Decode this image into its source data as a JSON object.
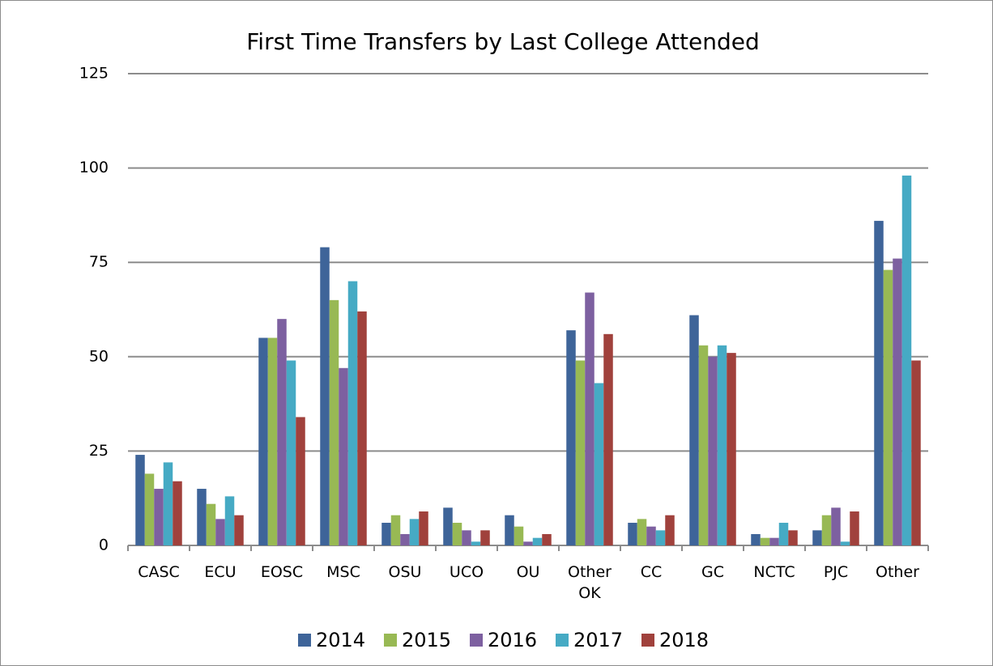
{
  "chart_data": {
    "type": "bar",
    "title": "First Time Transfers by Last College Attended",
    "categories": [
      "CASC",
      "ECU",
      "EOSC",
      "MSC",
      "OSU",
      "UCO",
      "OU",
      "Other OK",
      "CC",
      "GC",
      "NCTC",
      "PJC",
      "Other"
    ],
    "series": [
      {
        "name": "2014",
        "color": "#3e6499",
        "values": [
          24,
          15,
          55,
          79,
          6,
          10,
          8,
          57,
          6,
          61,
          3,
          4,
          86
        ]
      },
      {
        "name": "2015",
        "color": "#98b954",
        "values": [
          19,
          11,
          55,
          65,
          8,
          6,
          5,
          49,
          7,
          53,
          2,
          8,
          73
        ]
      },
      {
        "name": "2016",
        "color": "#7d60a0",
        "values": [
          15,
          7,
          60,
          47,
          3,
          4,
          1,
          67,
          5,
          50,
          2,
          10,
          76
        ]
      },
      {
        "name": "2017",
        "color": "#46aac4",
        "values": [
          22,
          13,
          49,
          70,
          7,
          1,
          2,
          43,
          4,
          53,
          6,
          1,
          98
        ]
      },
      {
        "name": "2018",
        "color": "#a0413c",
        "values": [
          17,
          8,
          34,
          62,
          9,
          4,
          3,
          56,
          8,
          51,
          4,
          9,
          49
        ]
      }
    ],
    "ylim": [
      0,
      125
    ],
    "yticks": [
      0,
      25,
      50,
      75,
      100,
      125
    ],
    "grid": true,
    "legend": "bottom"
  }
}
